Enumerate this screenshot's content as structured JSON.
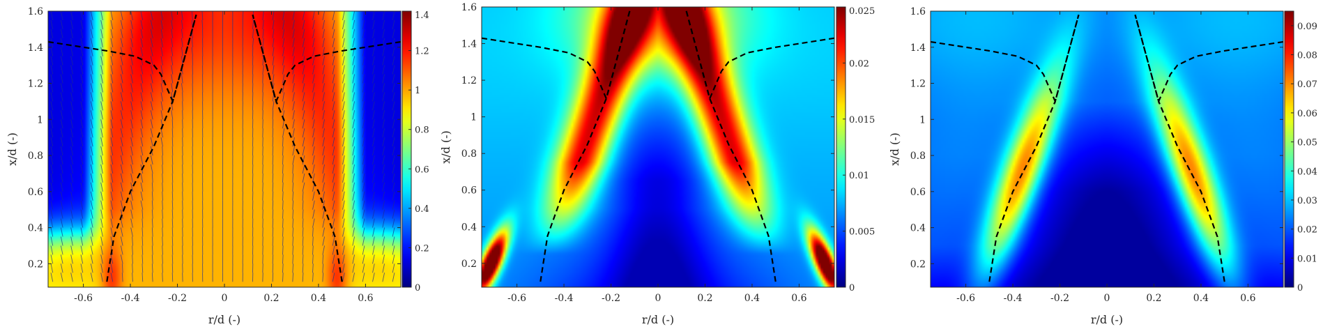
{
  "chart_data": [
    {
      "type": "heatmap",
      "title": "",
      "xlabel": "r/d (-)",
      "ylabel": "x/d (-)",
      "xlim": [
        -0.75,
        0.75
      ],
      "ylim": [
        0.07,
        1.6
      ],
      "xticks": [
        -0.6,
        -0.4,
        -0.2,
        0,
        0.2,
        0.4,
        0.6
      ],
      "xtick_labels": [
        "-0.6",
        "-0.4",
        "-0.2",
        "0",
        "0.2",
        "0.4",
        "0.6"
      ],
      "yticks": [
        0.2,
        0.4,
        0.6,
        0.8,
        1.0,
        1.2,
        1.4,
        1.6
      ],
      "ytick_labels": [
        "0.2",
        "0.4",
        "0.6",
        "0.8",
        "1",
        "1.2",
        "1.4",
        "1.6"
      ],
      "colorbar": {
        "range": [
          0,
          1.4
        ],
        "ticks": [
          0,
          0.2,
          0.4,
          0.6,
          0.8,
          1.0,
          1.2,
          1.4
        ],
        "tick_labels": [
          "0",
          "0.2",
          "0.4",
          "0.6",
          "0.8",
          "1",
          "1.2",
          "1.4"
        ]
      },
      "field_pattern": "mean-velocity",
      "vectors": true,
      "dashed_lines": [
        {
          "name": "",
          "x": [
            -0.75,
            -0.5,
            -0.38,
            -0.3,
            -0.27,
            -0.22,
            -0.12
          ],
          "y": [
            1.43,
            1.38,
            1.35,
            1.3,
            1.25,
            1.1,
            1.58
          ]
        },
        {
          "name": "",
          "x": [
            0.75,
            0.5,
            0.38,
            0.3,
            0.27,
            0.22,
            0.12
          ],
          "y": [
            1.43,
            1.38,
            1.35,
            1.3,
            1.25,
            1.1,
            1.58
          ]
        },
        {
          "name": "",
          "x": [
            -0.5,
            -0.47,
            -0.4,
            -0.3,
            -0.22,
            -0.12
          ],
          "y": [
            0.1,
            0.35,
            0.6,
            0.85,
            1.1,
            1.58
          ]
        },
        {
          "name": "",
          "x": [
            0.5,
            0.47,
            0.4,
            0.3,
            0.22,
            0.12
          ],
          "y": [
            0.1,
            0.35,
            0.6,
            0.85,
            1.1,
            1.58
          ]
        }
      ]
    },
    {
      "type": "heatmap",
      "title": "",
      "xlabel": "r/d (-)",
      "ylabel": "x/d (-)",
      "xlim": [
        -0.75,
        0.75
      ],
      "ylim": [
        0.07,
        1.6
      ],
      "xticks": [
        -0.6,
        -0.4,
        -0.2,
        0,
        0.2,
        0.4,
        0.6
      ],
      "xtick_labels": [
        "-0.6",
        "-0.4",
        "-0.2",
        "0",
        "0.2",
        "0.4",
        "0.6"
      ],
      "yticks": [
        0.2,
        0.4,
        0.6,
        0.8,
        1.0,
        1.2,
        1.4,
        1.6
      ],
      "ytick_labels": [
        "0.2",
        "0.4",
        "0.6",
        "0.8",
        "1",
        "1.2",
        "1.4",
        "1.6"
      ],
      "colorbar": {
        "range": [
          0,
          0.025
        ],
        "ticks": [
          0,
          0.005,
          0.01,
          0.015,
          0.02,
          0.025
        ],
        "tick_labels": [
          "0",
          "0.005",
          "0.01",
          "0.015",
          "0.02",
          "0.025"
        ]
      },
      "field_pattern": "shear-layer-intense",
      "vectors": false,
      "dashed_lines": [
        {
          "name": "",
          "x": [
            -0.75,
            -0.5,
            -0.38,
            -0.3,
            -0.27,
            -0.22,
            -0.12
          ],
          "y": [
            1.43,
            1.38,
            1.35,
            1.3,
            1.25,
            1.1,
            1.58
          ]
        },
        {
          "name": "",
          "x": [
            0.75,
            0.5,
            0.38,
            0.3,
            0.27,
            0.22,
            0.12
          ],
          "y": [
            1.43,
            1.38,
            1.35,
            1.3,
            1.25,
            1.1,
            1.58
          ]
        },
        {
          "name": "",
          "x": [
            -0.5,
            -0.47,
            -0.4,
            -0.3,
            -0.22,
            -0.12
          ],
          "y": [
            0.1,
            0.35,
            0.6,
            0.85,
            1.1,
            1.58
          ]
        },
        {
          "name": "",
          "x": [
            0.5,
            0.47,
            0.4,
            0.3,
            0.22,
            0.12
          ],
          "y": [
            0.1,
            0.35,
            0.6,
            0.85,
            1.1,
            1.58
          ]
        }
      ]
    },
    {
      "type": "heatmap",
      "title": "",
      "xlabel": "r/d (-)",
      "ylabel": "x/d (-)",
      "xlim": [
        -0.75,
        0.75
      ],
      "ylim": [
        0.07,
        1.6
      ],
      "xticks": [
        -0.6,
        -0.4,
        -0.2,
        0,
        0.2,
        0.4,
        0.6
      ],
      "xtick_labels": [
        "-0.6",
        "-0.4",
        "-0.2",
        "0",
        "0.2",
        "0.4",
        "0.6"
      ],
      "yticks": [
        0.2,
        0.4,
        0.6,
        0.8,
        1.0,
        1.2,
        1.4,
        1.6
      ],
      "ytick_labels": [
        "0.2",
        "0.4",
        "0.6",
        "0.8",
        "1",
        "1.2",
        "1.4",
        "1.6"
      ],
      "colorbar": {
        "range": [
          0,
          0.095
        ],
        "ticks": [
          0,
          0.01,
          0.02,
          0.03,
          0.04,
          0.05,
          0.06,
          0.07,
          0.08,
          0.09
        ],
        "tick_labels": [
          "0",
          "0.01",
          "0.02",
          "0.03",
          "0.04",
          "0.05",
          "0.06",
          "0.07",
          "0.08",
          "0.09"
        ]
      },
      "field_pattern": "shear-layer-mild",
      "vectors": false,
      "dashed_lines": [
        {
          "name": "",
          "x": [
            -0.75,
            -0.5,
            -0.38,
            -0.3,
            -0.27,
            -0.22,
            -0.12
          ],
          "y": [
            1.43,
            1.38,
            1.35,
            1.3,
            1.25,
            1.1,
            1.58
          ]
        },
        {
          "name": "",
          "x": [
            0.75,
            0.5,
            0.38,
            0.3,
            0.27,
            0.22,
            0.12
          ],
          "y": [
            1.43,
            1.38,
            1.35,
            1.3,
            1.25,
            1.1,
            1.58
          ]
        },
        {
          "name": "",
          "x": [
            -0.5,
            -0.47,
            -0.4,
            -0.3,
            -0.22,
            -0.12
          ],
          "y": [
            0.1,
            0.35,
            0.6,
            0.85,
            1.1,
            1.58
          ]
        },
        {
          "name": "",
          "x": [
            0.5,
            0.47,
            0.4,
            0.3,
            0.22,
            0.12
          ],
          "y": [
            0.1,
            0.35,
            0.6,
            0.85,
            1.1,
            1.58
          ]
        }
      ]
    }
  ],
  "colormap": "jet",
  "colors": {
    "axis": "#262626",
    "dashed_line": "#000000",
    "vector": "#1f2f8f",
    "background": "#ffffff"
  }
}
